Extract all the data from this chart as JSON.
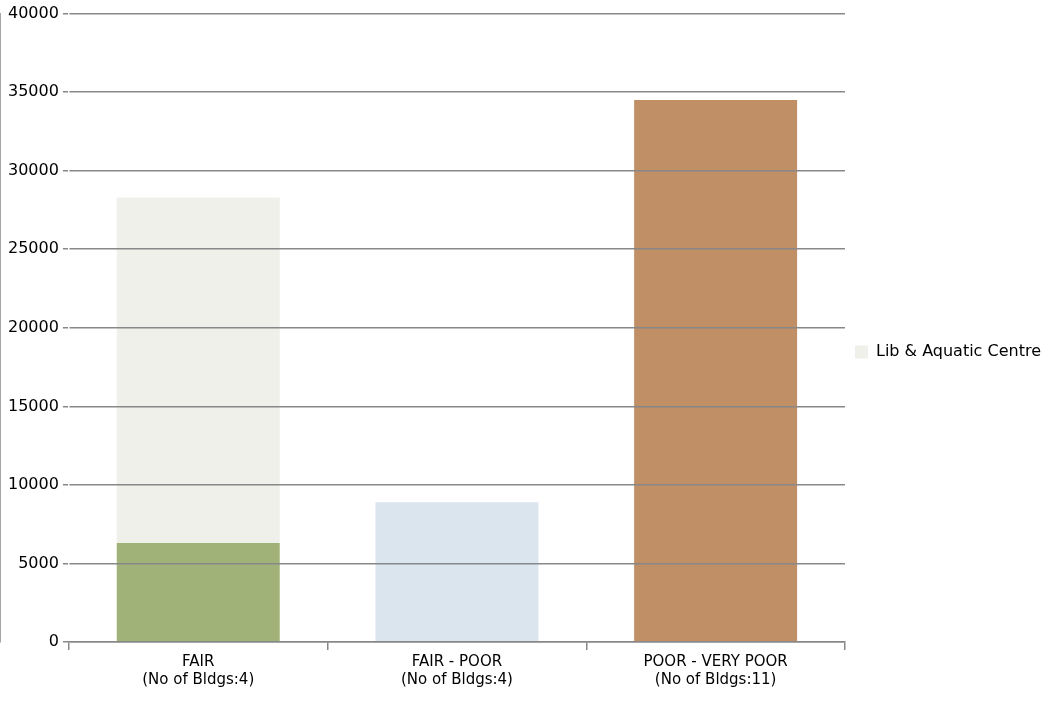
{
  "chart_data": {
    "type": "bar",
    "stacked": true,
    "categories": [
      "FAIR\n(No of Bldgs:4)",
      "FAIR - POOR\n(No of Bldgs:4)",
      "POOR - VERY POOR\n(No of Bldgs:11)"
    ],
    "series": [
      {
        "colors": [
          "#a0b277",
          "#dbe5ee",
          "#c08f66"
        ],
        "values": [
          6300,
          8900,
          34500
        ]
      },
      {
        "name": "Lib & Aquatic Centre",
        "color": "#eff0ea",
        "values": [
          22000,
          null,
          null
        ]
      }
    ],
    "ylim": [
      0,
      40000
    ],
    "yticks": [
      0,
      5000,
      10000,
      15000,
      20000,
      25000,
      30000,
      35000,
      40000
    ],
    "grid": "y",
    "legend": "right"
  }
}
